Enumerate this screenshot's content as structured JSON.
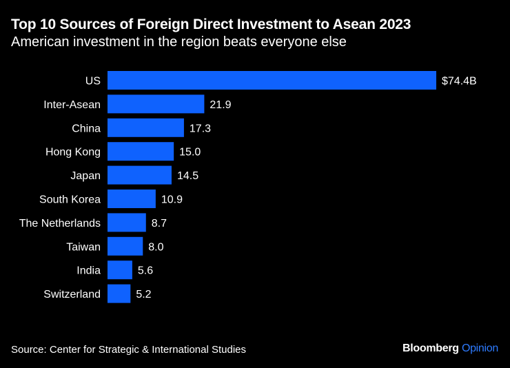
{
  "chart_data": {
    "type": "bar",
    "orientation": "horizontal",
    "title": "Top 10 Sources of Foreign Direct Investment to Asean 2023",
    "subtitle": "American investment in the region beats everyone else",
    "categories": [
      "US",
      "Inter-Asean",
      "China",
      "Hong Kong",
      "Japan",
      "South Korea",
      "The Netherlands",
      "Taiwan",
      "India",
      "Switzerland"
    ],
    "values": [
      74.4,
      21.9,
      17.3,
      15.0,
      14.5,
      10.9,
      8.7,
      8.0,
      5.6,
      5.2
    ],
    "value_labels": [
      "$74.4B",
      "21.9",
      "17.3",
      "15.0",
      "14.5",
      "10.9",
      "8.7",
      "8.0",
      "5.6",
      "5.2"
    ],
    "xlim": [
      0,
      74.4
    ],
    "grid": false,
    "bar_color": "#0f62fe"
  },
  "footer": {
    "source": "Source: Center for Strategic & International Studies",
    "brand_main": "Bloomberg",
    "brand_sub": "Opinion"
  },
  "colors": {
    "background": "#000000",
    "text": "#ffffff",
    "brand_accent": "#2e7bff"
  }
}
